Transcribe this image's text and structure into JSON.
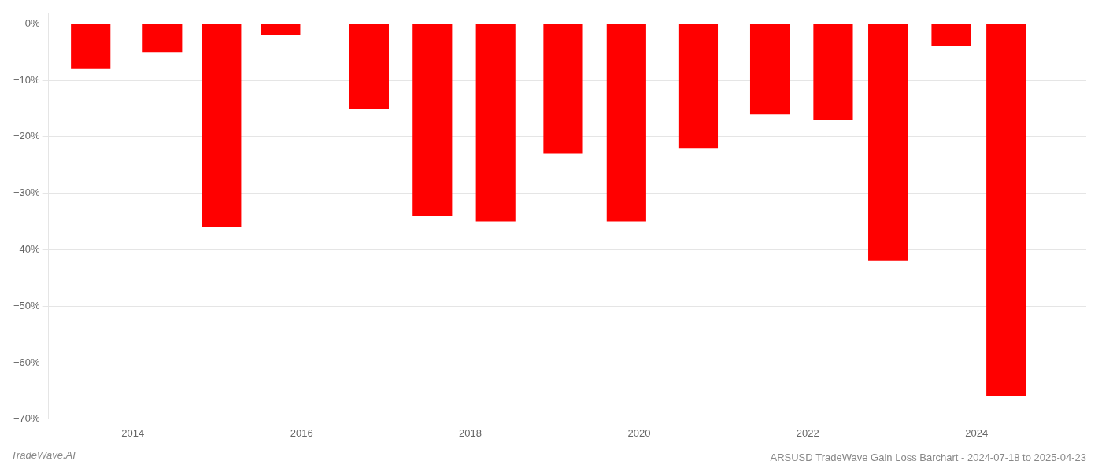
{
  "chart_data": {
    "type": "bar",
    "title": "ARSUSD TradeWave Gain Loss Barchart - 2024-07-18 to 2025-04-23",
    "annotations": [
      "TradeWave.AI"
    ],
    "x": [
      2013.5,
      2014.35,
      2015.05,
      2015.75,
      2016.8,
      2017.55,
      2018.3,
      2019.1,
      2019.85,
      2020.7,
      2021.55,
      2022.3,
      2022.95,
      2023.7,
      2024.35
    ],
    "values": [
      -8.0,
      -5.0,
      -36.0,
      -2.0,
      -15.0,
      -34.0,
      -35.0,
      -23.0,
      -35.0,
      -22.0,
      -16.0,
      -17.0,
      -42.0,
      -4.0,
      -66.0
    ],
    "color": "#ff0000",
    "xlim": [
      2013.0,
      2025.3
    ],
    "xticks": [
      2014,
      2016,
      2018,
      2020,
      2022,
      2024
    ],
    "ylim": [
      -70,
      2
    ],
    "yticks": [
      {
        "value": 0,
        "label": "0%"
      },
      {
        "value": -10,
        "label": "−10%"
      },
      {
        "value": -20,
        "label": "−20%"
      },
      {
        "value": -30,
        "label": "−30%"
      },
      {
        "value": -40,
        "label": "−40%"
      },
      {
        "value": -50,
        "label": "−50%"
      },
      {
        "value": -60,
        "label": "−60%"
      },
      {
        "value": -70,
        "label": "−70%"
      }
    ],
    "grid": true
  }
}
